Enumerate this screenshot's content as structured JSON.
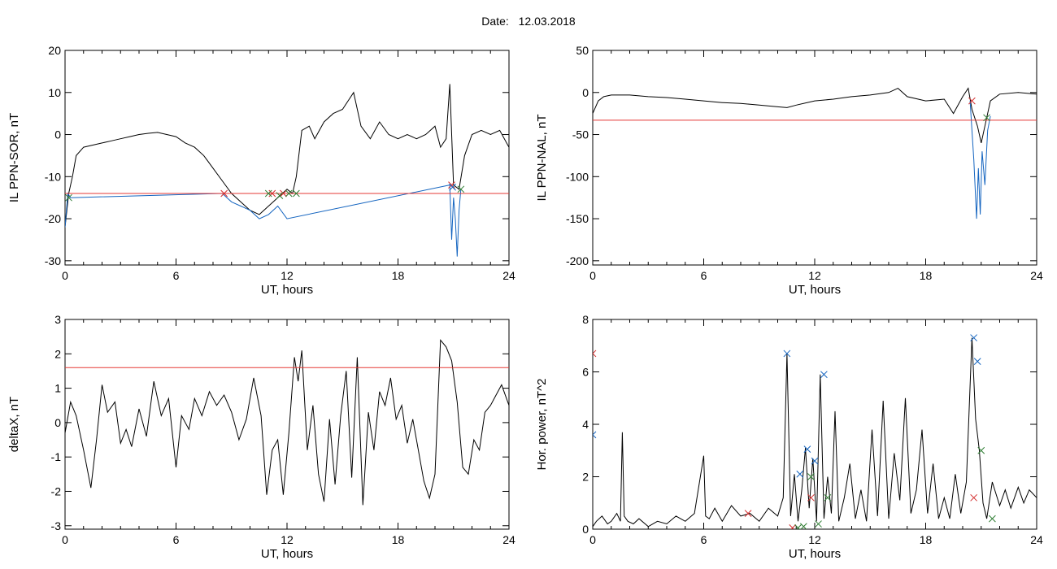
{
  "title": {
    "label": "Date:",
    "value": "12.03.2018"
  },
  "chart_data": [
    {
      "id": "sor",
      "type": "line",
      "ylabel": "IL PPN-SOR, nT",
      "xlabel": "UT, hours",
      "xlim": [
        0,
        24
      ],
      "ylim": [
        -31,
        20
      ],
      "xticks": [
        0,
        6,
        12,
        18,
        24
      ],
      "yticks": [
        -30,
        -20,
        -10,
        0,
        10,
        20
      ],
      "threshold": -14,
      "series": [
        {
          "color": "#000000",
          "x": [
            0,
            0.2,
            0.4,
            0.6,
            1,
            1.5,
            2,
            2.5,
            3,
            3.5,
            4,
            4.5,
            5,
            5.5,
            6,
            6.5,
            7,
            7.5,
            8,
            8.5,
            9,
            9.5,
            10,
            10.5,
            11,
            11.5,
            12,
            12.3,
            12.5,
            12.8,
            13.2,
            13.5,
            14,
            14.5,
            15,
            15.3,
            15.6,
            16,
            16.5,
            17,
            17.5,
            18,
            18.5,
            19,
            19.5,
            20,
            20.3,
            20.6,
            20.8,
            21,
            21.3,
            21.6,
            22,
            22.5,
            23,
            23.5,
            24
          ],
          "y": [
            -22,
            -14,
            -10,
            -5,
            -3,
            -2.5,
            -2,
            -1.5,
            -1,
            -0.5,
            0,
            0.3,
            0.5,
            0,
            -0.5,
            -2,
            -3,
            -5,
            -8,
            -11,
            -14,
            -16,
            -18,
            -19,
            -17,
            -15,
            -13,
            -14,
            -10,
            1,
            2,
            -1,
            3,
            5,
            6,
            8,
            10,
            2,
            -1,
            3,
            0,
            -1,
            0,
            -1,
            0,
            2,
            -3,
            -1,
            12,
            -12,
            -13,
            -5,
            0,
            1,
            0,
            1,
            -3
          ]
        },
        {
          "color": "#1565c0",
          "x": [
            0,
            0.15,
            0.3,
            8.5,
            9,
            9.5,
            10,
            10.5,
            11,
            11.5,
            12,
            20.8,
            20.9,
            21,
            21.1,
            21.2,
            21.3,
            21.4
          ],
          "y": [
            -22,
            -14,
            -15,
            -14,
            -16,
            -17,
            -18,
            -20,
            -19,
            -17,
            -20,
            -12,
            -25,
            -15,
            -20,
            -29,
            -18,
            -13
          ]
        }
      ],
      "markers": [
        {
          "x": 8.6,
          "y": -14,
          "color": "#d32f2f"
        },
        {
          "x": 11.2,
          "y": -14,
          "color": "#d32f2f"
        },
        {
          "x": 11.8,
          "y": -14,
          "color": "#d32f2f"
        },
        {
          "x": 20.9,
          "y": -12,
          "color": "#d32f2f"
        },
        {
          "x": 0.2,
          "y": -15,
          "color": "#2e7d32"
        },
        {
          "x": 11.0,
          "y": -14,
          "color": "#2e7d32"
        },
        {
          "x": 11.6,
          "y": -14.5,
          "color": "#2e7d32"
        },
        {
          "x": 12.1,
          "y": -14,
          "color": "#2e7d32"
        },
        {
          "x": 12.5,
          "y": -14,
          "color": "#2e7d32"
        },
        {
          "x": 21.4,
          "y": -13,
          "color": "#2e7d32"
        },
        {
          "x": 20.95,
          "y": -12.5,
          "color": "#1565c0"
        }
      ]
    },
    {
      "id": "nal",
      "type": "line",
      "ylabel": "IL PPN-NAL, nT",
      "xlabel": "UT, hours",
      "xlim": [
        0,
        24
      ],
      "ylim": [
        -205,
        50
      ],
      "xticks": [
        0,
        6,
        12,
        18,
        24
      ],
      "yticks": [
        -200,
        -150,
        -100,
        -50,
        0,
        50
      ],
      "threshold": -33,
      "series": [
        {
          "color": "#000000",
          "x": [
            0,
            0.3,
            0.6,
            1,
            2,
            3,
            4,
            5,
            6,
            7,
            8,
            9,
            10,
            10.5,
            11,
            12,
            13,
            14,
            15,
            16,
            16.5,
            17,
            18,
            19,
            19.5,
            20,
            20.3,
            20.5,
            20.8,
            21,
            21.2,
            21.5,
            22,
            23,
            24
          ],
          "y": [
            -25,
            -10,
            -5,
            -3,
            -3,
            -5,
            -6,
            -8,
            -10,
            -12,
            -13,
            -15,
            -17,
            -18,
            -15,
            -10,
            -8,
            -5,
            -3,
            0,
            5,
            -5,
            -10,
            -8,
            -25,
            -5,
            5,
            -20,
            -40,
            -60,
            -40,
            -10,
            -2,
            0,
            -2
          ]
        },
        {
          "color": "#1565c0",
          "x": [
            20.4,
            20.6,
            20.75,
            20.85,
            20.95,
            21.05,
            21.2,
            21.35,
            21.5
          ],
          "y": [
            -10,
            -80,
            -150,
            -90,
            -145,
            -70,
            -110,
            -45,
            -28
          ]
        }
      ],
      "markers": [
        {
          "x": 20.5,
          "y": -10,
          "color": "#d32f2f"
        },
        {
          "x": 21.3,
          "y": -30,
          "color": "#2e7d32"
        }
      ]
    },
    {
      "id": "deltax",
      "type": "line",
      "ylabel": "deltaX, nT",
      "xlabel": "UT, hours",
      "xlim": [
        0,
        24
      ],
      "ylim": [
        -3.1,
        3
      ],
      "xticks": [
        0,
        6,
        12,
        18,
        24
      ],
      "yticks": [
        -3,
        -2,
        -1,
        0,
        1,
        2,
        3
      ],
      "threshold": 1.6,
      "series": [
        {
          "color": "#000000",
          "x": [
            0,
            0.3,
            0.6,
            1,
            1.4,
            1.7,
            2,
            2.3,
            2.7,
            3,
            3.3,
            3.6,
            4,
            4.4,
            4.8,
            5.2,
            5.6,
            6,
            6.3,
            6.7,
            7,
            7.4,
            7.8,
            8.2,
            8.6,
            9,
            9.4,
            9.8,
            10.2,
            10.6,
            10.9,
            11.2,
            11.5,
            11.8,
            12.1,
            12.4,
            12.6,
            12.8,
            13.1,
            13.4,
            13.7,
            14,
            14.3,
            14.6,
            14.9,
            15.2,
            15.5,
            15.8,
            16.1,
            16.4,
            16.7,
            17,
            17.3,
            17.6,
            17.9,
            18.2,
            18.5,
            18.8,
            19.1,
            19.4,
            19.7,
            20,
            20.3,
            20.6,
            20.9,
            21.2,
            21.5,
            21.8,
            22.1,
            22.4,
            22.7,
            23,
            23.3,
            23.6,
            24
          ],
          "y": [
            -0.3,
            0.6,
            0.2,
            -0.8,
            -1.9,
            -0.5,
            1.1,
            0.3,
            0.6,
            -0.6,
            -0.2,
            -0.7,
            0.4,
            -0.4,
            1.2,
            0.2,
            0.7,
            -1.3,
            0.2,
            -0.2,
            0.7,
            0.2,
            0.9,
            0.5,
            0.8,
            0.3,
            -0.5,
            0.1,
            1.3,
            0.2,
            -2.1,
            -0.8,
            -0.5,
            -2.1,
            -0.3,
            1.9,
            1.2,
            2.1,
            -0.8,
            0.5,
            -1.5,
            -2.3,
            0.1,
            -1.8,
            0.2,
            1.5,
            -1.6,
            1.9,
            -2.4,
            0.3,
            -0.8,
            0.9,
            0.5,
            1.3,
            0.1,
            0.5,
            -0.6,
            0.1,
            -0.8,
            -1.7,
            -2.2,
            -1.5,
            2.4,
            2.2,
            1.8,
            0.6,
            -1.3,
            -1.5,
            -0.5,
            -0.8,
            0.3,
            0.5,
            0.8,
            1.1,
            0.5
          ]
        }
      ],
      "markers": []
    },
    {
      "id": "hpower",
      "type": "line",
      "ylabel": "Hor. power, nT^2",
      "xlabel": "UT, hours",
      "xlim": [
        0,
        24
      ],
      "ylim": [
        0,
        8
      ],
      "xticks": [
        0,
        6,
        12,
        18,
        24
      ],
      "yticks": [
        0,
        2,
        4,
        6,
        8
      ],
      "threshold": null,
      "series": [
        {
          "color": "#000000",
          "x": [
            0,
            0.2,
            0.5,
            0.8,
            1,
            1.3,
            1.5,
            1.6,
            1.7,
            1.9,
            2.2,
            2.5,
            3,
            3.5,
            4,
            4.5,
            5,
            5.5,
            6,
            6.1,
            6.3,
            6.6,
            7,
            7.5,
            8,
            8.5,
            9,
            9.5,
            10,
            10.3,
            10.5,
            10.7,
            10.9,
            11.1,
            11.3,
            11.5,
            11.7,
            11.9,
            12.1,
            12.3,
            12.5,
            12.7,
            12.9,
            13.1,
            13.3,
            13.6,
            13.9,
            14.2,
            14.5,
            14.8,
            15.1,
            15.4,
            15.7,
            16,
            16.3,
            16.6,
            16.9,
            17.2,
            17.5,
            17.8,
            18.1,
            18.4,
            18.7,
            19,
            19.3,
            19.6,
            19.9,
            20.2,
            20.5,
            20.7,
            20.9,
            21.1,
            21.3,
            21.6,
            22,
            22.3,
            22.6,
            23,
            23.3,
            23.6,
            24
          ],
          "y": [
            0.1,
            0.3,
            0.5,
            0.2,
            0.3,
            0.6,
            0.3,
            3.7,
            0.5,
            0.3,
            0.2,
            0.4,
            0.1,
            0.3,
            0.2,
            0.5,
            0.3,
            0.6,
            2.8,
            0.5,
            0.4,
            0.8,
            0.3,
            0.9,
            0.5,
            0.6,
            0.3,
            0.8,
            0.5,
            1.2,
            6.7,
            0.5,
            2.1,
            0.3,
            1.5,
            3.1,
            0.8,
            2.7,
            0.3,
            5.9,
            0.4,
            2.0,
            0.6,
            4.5,
            0.3,
            1.2,
            2.5,
            0.4,
            1.5,
            0.3,
            3.8,
            0.5,
            4.9,
            0.4,
            2.9,
            1.1,
            5.0,
            0.6,
            1.5,
            3.8,
            0.6,
            2.5,
            0.4,
            1.2,
            0.4,
            2.1,
            0.6,
            1.8,
            7.3,
            4.2,
            3.0,
            1.0,
            0.4,
            1.8,
            0.9,
            1.5,
            0.8,
            1.6,
            1.0,
            1.5,
            1.2
          ]
        }
      ],
      "markers": [
        {
          "x": 10.5,
          "y": 6.7,
          "color": "#1565c0"
        },
        {
          "x": 11.2,
          "y": 2.1,
          "color": "#1565c0"
        },
        {
          "x": 11.6,
          "y": 3.05,
          "color": "#1565c0"
        },
        {
          "x": 12.0,
          "y": 2.6,
          "color": "#1565c0"
        },
        {
          "x": 12.5,
          "y": 5.9,
          "color": "#1565c0"
        },
        {
          "x": 20.6,
          "y": 7.3,
          "color": "#1565c0"
        },
        {
          "x": 20.8,
          "y": 6.4,
          "color": "#1565c0"
        },
        {
          "x": 0,
          "y": 3.6,
          "color": "#1565c0"
        },
        {
          "x": 0,
          "y": 6.7,
          "color": "#d32f2f"
        },
        {
          "x": 8.4,
          "y": 0.6,
          "color": "#d32f2f"
        },
        {
          "x": 10.8,
          "y": 0.05,
          "color": "#d32f2f"
        },
        {
          "x": 11.8,
          "y": 1.2,
          "color": "#d32f2f"
        },
        {
          "x": 20.6,
          "y": 1.2,
          "color": "#d32f2f"
        },
        {
          "x": 11.1,
          "y": 0.05,
          "color": "#2e7d32"
        },
        {
          "x": 11.4,
          "y": 0.1,
          "color": "#2e7d32"
        },
        {
          "x": 11.8,
          "y": 2.0,
          "color": "#2e7d32"
        },
        {
          "x": 12.2,
          "y": 0.2,
          "color": "#2e7d32"
        },
        {
          "x": 12.7,
          "y": 1.2,
          "color": "#2e7d32"
        },
        {
          "x": 21.0,
          "y": 3.0,
          "color": "#2e7d32"
        },
        {
          "x": 21.6,
          "y": 0.4,
          "color": "#2e7d32"
        }
      ]
    }
  ]
}
